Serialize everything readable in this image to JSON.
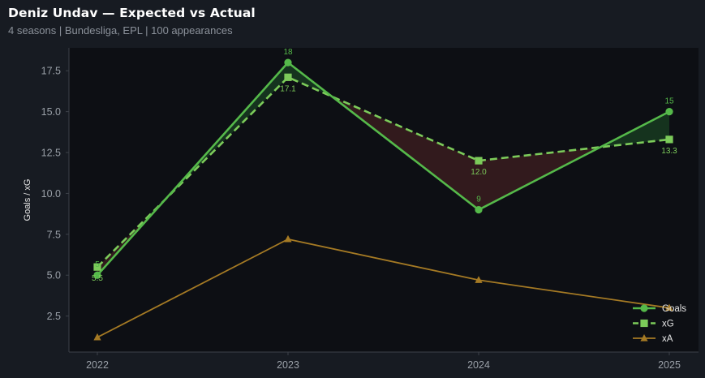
{
  "header": {
    "title": "Deniz Undav — Expected vs Actual",
    "subtitle": "4 seasons | Bundesliga, EPL | 100 appearances"
  },
  "chart_data": {
    "type": "line",
    "title": "Deniz Undav — Expected vs Actual",
    "subtitle": "4 seasons | Bundesliga, EPL | 100 appearances",
    "xlabel": "",
    "ylabel": "Goals / xG",
    "categories": [
      "2022",
      "2023",
      "2024",
      "2025"
    ],
    "ylim": [
      0.3,
      18.9
    ],
    "yticks": [
      "2.5",
      "5.0",
      "7.5",
      "10.0",
      "12.5",
      "15.0",
      "17.5"
    ],
    "grid": false,
    "legend_position": "bottom-right",
    "series": [
      {
        "name": "Goals",
        "values": [
          5,
          18,
          9,
          15
        ],
        "labels": [
          "5",
          "18",
          "9",
          "15"
        ],
        "color": "#55b94a",
        "marker": "circle",
        "style": "solid"
      },
      {
        "name": "xG",
        "values": [
          5.5,
          17.1,
          12.0,
          13.3
        ],
        "labels": [
          "5.5",
          "17.1",
          "12.0",
          "13.3"
        ],
        "color": "#7ccb5a",
        "marker": "square",
        "style": "dashed"
      },
      {
        "name": "xA",
        "values": [
          1.2,
          7.2,
          4.7,
          3.0
        ],
        "color": "#a57a24",
        "marker": "triangle",
        "style": "solid"
      }
    ],
    "fill_colors": {
      "over": "#173a20",
      "under": "#3a1c1e"
    }
  },
  "colors": {
    "page_bg": "#171b22",
    "plot_bg": "#0d0f14",
    "axis": "#3d424a"
  }
}
